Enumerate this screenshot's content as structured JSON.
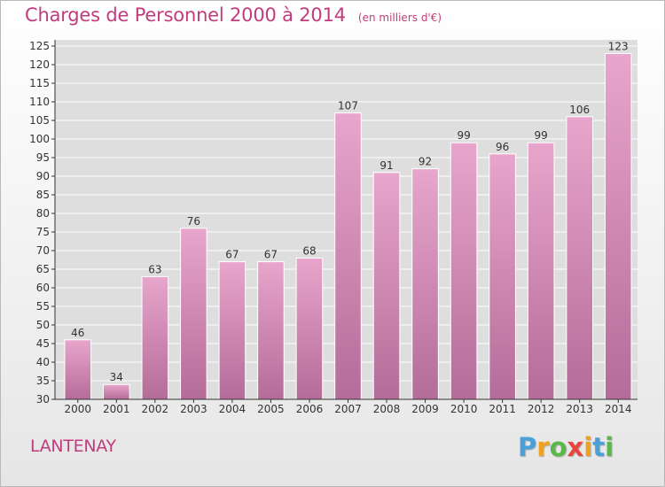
{
  "chart_data": {
    "type": "bar",
    "title": "Charges de Personnel 2000 à 2014",
    "subtitle": "(en milliers d'€)",
    "categories": [
      "2000",
      "2001",
      "2002",
      "2003",
      "2004",
      "2005",
      "2006",
      "2007",
      "2008",
      "2009",
      "2010",
      "2011",
      "2012",
      "2013",
      "2014"
    ],
    "values": [
      46,
      34,
      63,
      76,
      67,
      67,
      68,
      107,
      91,
      92,
      99,
      96,
      99,
      106,
      123
    ],
    "ylim": [
      30,
      125
    ],
    "yticks": [
      30,
      35,
      40,
      45,
      50,
      55,
      60,
      65,
      70,
      75,
      80,
      85,
      90,
      95,
      100,
      105,
      110,
      115,
      120,
      125
    ],
    "grid": true,
    "bar_color_top": "#e8a6cc",
    "bar_color_bottom": "#b46c98"
  },
  "footer": {
    "commune": "LANTENAY",
    "logo_letters": [
      "P",
      "r",
      "o",
      "x",
      "i",
      "t",
      "i"
    ],
    "logo_colors": [
      "#4aa0d8",
      "#f0a020",
      "#58b848",
      "#e8453c",
      "#f0a020",
      "#4aa0d8",
      "#58b848"
    ]
  },
  "colors": {
    "title": "#c03c7c",
    "grid": "#ffffff",
    "axis": "#333333"
  }
}
